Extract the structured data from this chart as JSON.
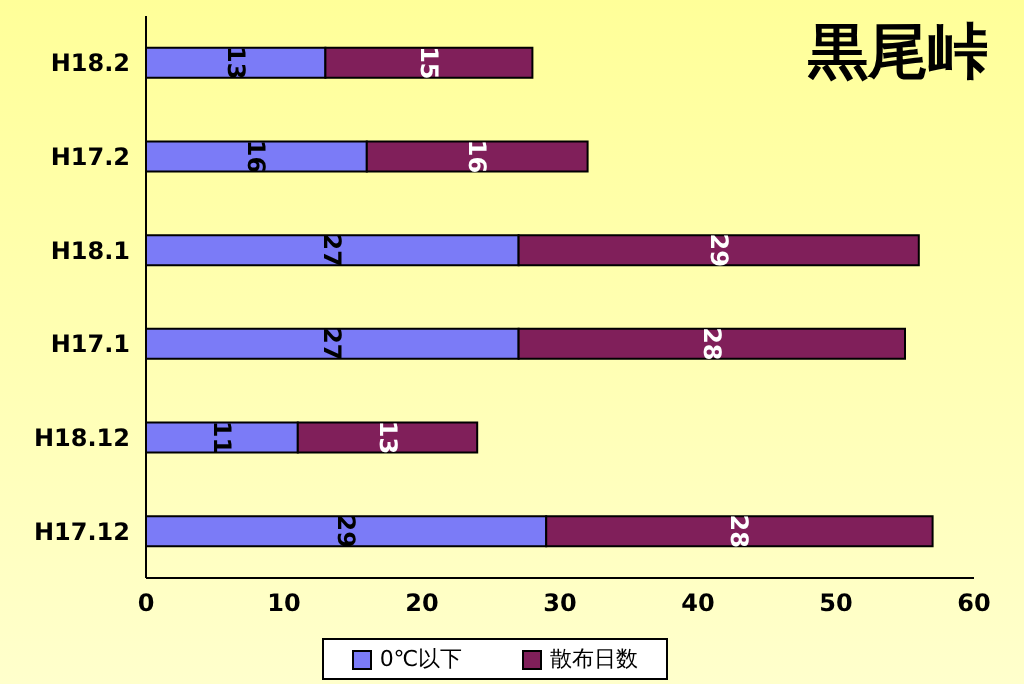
{
  "chart_data": {
    "type": "bar",
    "orientation": "horizontal",
    "stacked": true,
    "title": "黒尾峠",
    "categories": [
      "H18.2",
      "H17.2",
      "H18.1",
      "H17.1",
      "H18.12",
      "H17.12"
    ],
    "series": [
      {
        "name": "0℃以下",
        "color": "#7b7bf7",
        "values": [
          13,
          16,
          27,
          27,
          11,
          29
        ]
      },
      {
        "name": "散布日数",
        "color": "#801f5a",
        "values": [
          15,
          16,
          29,
          28,
          13,
          28
        ]
      }
    ],
    "xlim": [
      0,
      60
    ],
    "xticks": [
      0,
      10,
      20,
      30,
      40,
      50,
      60
    ],
    "data_labels": true,
    "legend": "bottom",
    "grid": false
  }
}
